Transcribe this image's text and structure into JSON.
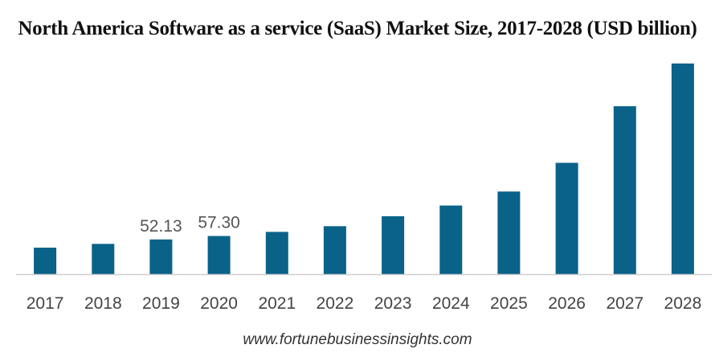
{
  "chart_data": {
    "type": "bar",
    "title": "North America Software as a service (SaaS) Market Size, 2017-2028 (USD billion)",
    "categories": [
      "2017",
      "2018",
      "2019",
      "2020",
      "2021",
      "2022",
      "2023",
      "2024",
      "2025",
      "2026",
      "2027",
      "2028"
    ],
    "values": [
      39.8,
      45.5,
      52.13,
      57.3,
      63.5,
      72.0,
      87.0,
      103.0,
      124.0,
      167.0,
      252.0,
      316.0
    ],
    "data_labels": [
      null,
      null,
      "52.13",
      "57.30",
      null,
      null,
      null,
      null,
      null,
      null,
      null,
      null
    ],
    "ylim": [
      0,
      316
    ],
    "bar_color": "#0a6289",
    "axis_color": "#cfcfcf",
    "grid": false,
    "legend": "none"
  },
  "source_text": "www.fortunebusinessinsights.com"
}
